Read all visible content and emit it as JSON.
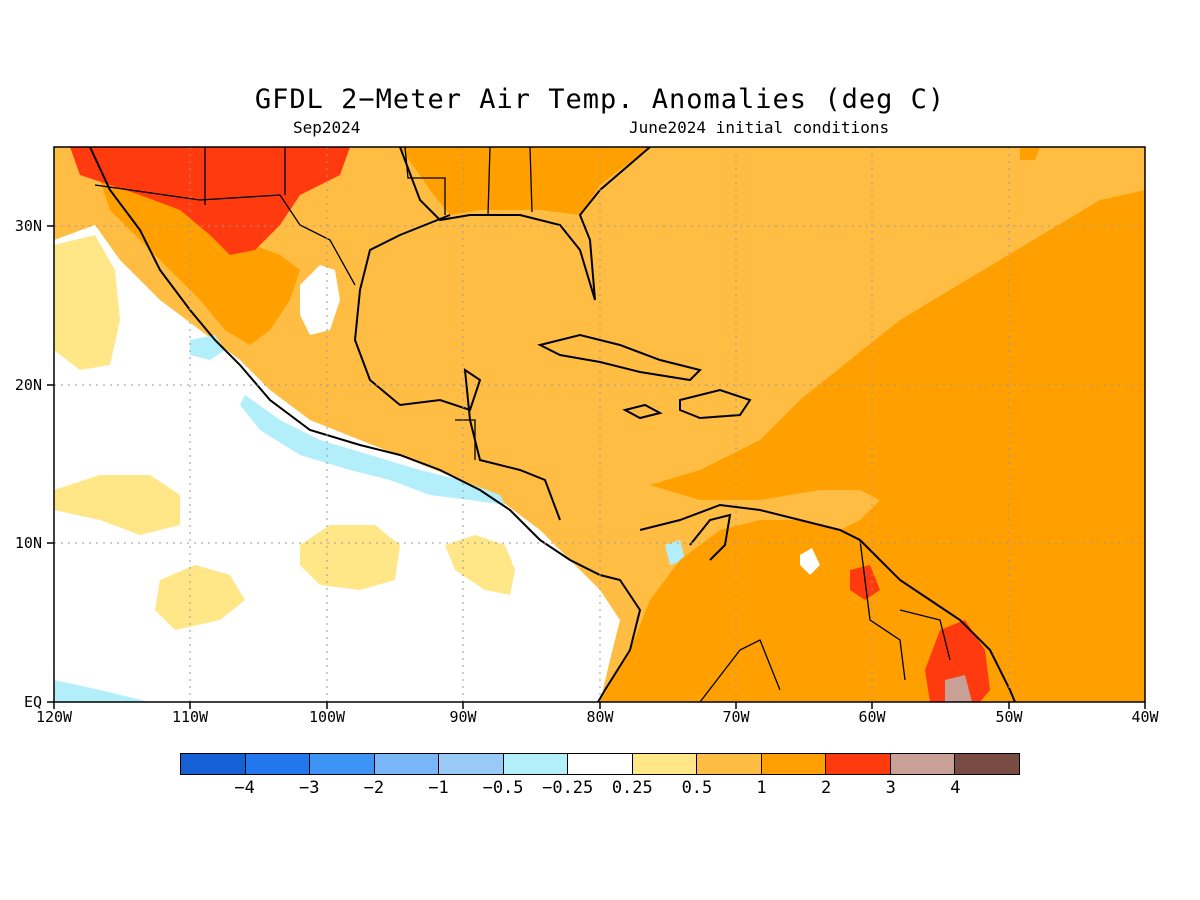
{
  "title": "GFDL 2−Meter Air Temp. Anomalies (deg C)",
  "subtitle_left": "Sep2024",
  "subtitle_right": "June2024 initial conditions",
  "map": {
    "lon_labels": [
      "120W",
      "110W",
      "100W",
      "90W",
      "80W",
      "70W",
      "60W",
      "50W",
      "40W"
    ],
    "lat_labels": [
      "30N",
      "20N",
      "10N",
      "EQ"
    ],
    "lon_range": [
      -120,
      -40
    ],
    "lat_range": [
      0,
      35
    ],
    "gridlines": "dotted"
  },
  "colorbar": {
    "colors": [
      "#1560d4",
      "#2277ee",
      "#3d94f5",
      "#78b6f7",
      "#99c9f7",
      "#b3eefb",
      "#ffffff",
      "#ffe687",
      "#ffbd44",
      "#ffa000",
      "#ff3a0f",
      "#c8a095",
      "#7a4b42"
    ],
    "labels": [
      "−4",
      "−3",
      "−2",
      "−1",
      "−0.5",
      "−0.25",
      "0.25",
      "0.5",
      "1",
      "2",
      "3",
      "4"
    ]
  }
}
